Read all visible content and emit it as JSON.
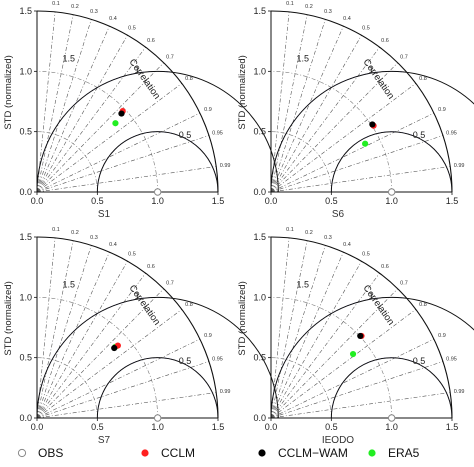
{
  "chart_data": [
    {
      "type": "scatter",
      "subtype": "taylor-diagram",
      "panel_label": "S1",
      "ylabel": "STD (normalized)",
      "corr_label": "Correlation",
      "axis_range": [
        0,
        1.5
      ],
      "axis_ticks": [
        "0.0",
        "0.5",
        "1.0",
        "1.5"
      ],
      "arc_tick_labels": [
        "1.5",
        "1",
        "0.5"
      ],
      "corr_ticks": [
        "0.1",
        "0.2",
        "0.3",
        "0.4",
        "0.5",
        "0.6",
        "0.7",
        "0.8",
        "0.9",
        "0.95",
        "0.99"
      ],
      "series": [
        {
          "name": "CCLM",
          "x": 0.71,
          "y": 0.67
        },
        {
          "name": "CCLM-WAM",
          "x": 0.7,
          "y": 0.65
        },
        {
          "name": "ERA5",
          "x": 0.65,
          "y": 0.57
        }
      ]
    },
    {
      "type": "scatter",
      "subtype": "taylor-diagram",
      "panel_label": "S6",
      "ylabel": "STD (normalized)",
      "corr_label": "Correlation",
      "axis_range": [
        0,
        1.5
      ],
      "axis_ticks": [
        "0.0",
        "0.5",
        "1.0",
        "1.5"
      ],
      "arc_tick_labels": [
        "1.5",
        "1",
        "0.5"
      ],
      "corr_ticks": [
        "0.1",
        "0.2",
        "0.3",
        "0.4",
        "0.5",
        "0.6",
        "0.7",
        "0.8",
        "0.9",
        "0.95",
        "0.99"
      ],
      "series": [
        {
          "name": "CCLM",
          "x": 0.85,
          "y": 0.55
        },
        {
          "name": "CCLM-WAM",
          "x": 0.84,
          "y": 0.56
        },
        {
          "name": "ERA5",
          "x": 0.78,
          "y": 0.4
        }
      ]
    },
    {
      "type": "scatter",
      "subtype": "taylor-diagram",
      "panel_label": "S7",
      "ylabel": "STD (normalized)",
      "corr_label": "Correlation",
      "axis_range": [
        0,
        1.5
      ],
      "axis_ticks": [
        "0.0",
        "0.5",
        "1.0",
        "1.5"
      ],
      "arc_tick_labels": [
        "1.5",
        "1",
        "0.5"
      ],
      "corr_ticks": [
        "0.1",
        "0.2",
        "0.3",
        "0.4",
        "0.5",
        "0.6",
        "0.7",
        "0.8",
        "0.9",
        "0.95",
        "0.99"
      ],
      "series": [
        {
          "name": "CCLM",
          "x": 0.67,
          "y": 0.6
        },
        {
          "name": "CCLM-WAM",
          "x": 0.64,
          "y": 0.58
        },
        {
          "name": "ERA5",
          "x": 0.65,
          "y": 0.59
        }
      ]
    },
    {
      "type": "scatter",
      "subtype": "taylor-diagram",
      "panel_label": "IEODO",
      "ylabel": "STD (normalized)",
      "corr_label": "Correlation",
      "axis_range": [
        0,
        1.5
      ],
      "axis_ticks": [
        "0.0",
        "0.5",
        "1.0",
        "1.5"
      ],
      "arc_tick_labels": [
        "1.5",
        "1",
        "0.5"
      ],
      "corr_ticks": [
        "0.1",
        "0.2",
        "0.3",
        "0.4",
        "0.5",
        "0.6",
        "0.7",
        "0.8",
        "0.9",
        "0.95",
        "0.99"
      ],
      "series": [
        {
          "name": "CCLM",
          "x": 0.75,
          "y": 0.68
        },
        {
          "name": "CCLM-WAM",
          "x": 0.74,
          "y": 0.68
        },
        {
          "name": "ERA5",
          "x": 0.68,
          "y": 0.53
        }
      ]
    }
  ],
  "reference_point": {
    "name": "OBS",
    "x": 1.0,
    "y": 0.0
  },
  "legend": {
    "items": [
      {
        "label": "OBS",
        "marker": "open-circle",
        "color": "#888888"
      },
      {
        "label": "CCLM",
        "marker": "filled-circle",
        "color": "#ff2020"
      },
      {
        "label": "CCLM−WAM",
        "marker": "filled-circle",
        "color": "#000000"
      },
      {
        "label": "ERA5",
        "marker": "filled-circle",
        "color": "#22ee22"
      }
    ]
  },
  "colors": {
    "CCLM": "#ff2020",
    "CCLM-WAM": "#000000",
    "ERA5": "#22ee22",
    "obs": "#888888",
    "rms_arcs": "#4444ff"
  }
}
